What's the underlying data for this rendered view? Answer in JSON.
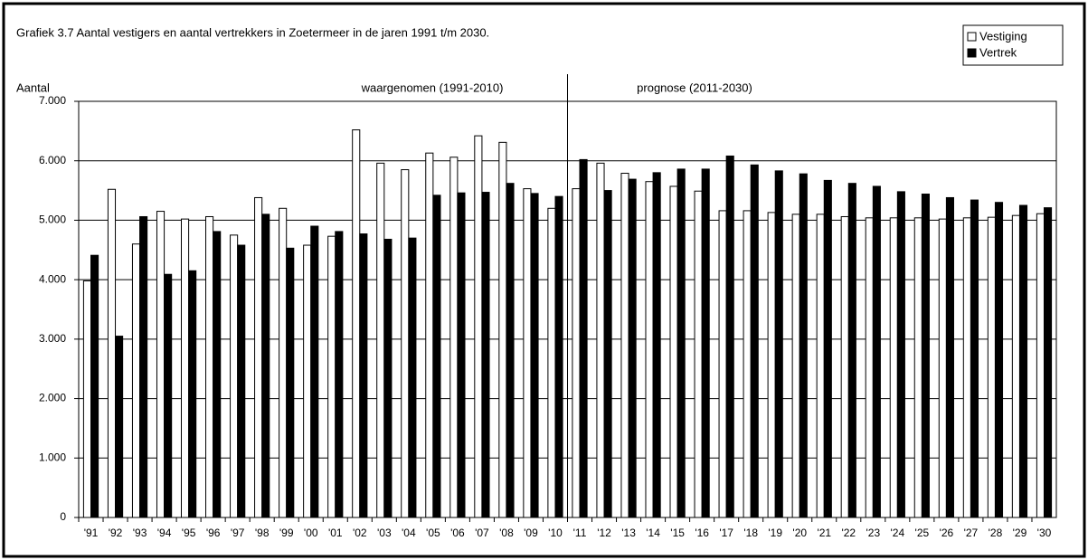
{
  "chart_data": {
    "type": "bar",
    "title": "Grafiek 3.7  Aantal vestigers en aantal vertrekkers in Zoetermeer in de jaren 1991 t/m 2030.",
    "y_label": "Aantal",
    "annotations": [
      "waargenomen (1991-2010)",
      "prognose (2011-2030)"
    ],
    "categories": [
      "'91",
      "'92",
      "'93",
      "'94",
      "'95",
      "'96",
      "'97",
      "'98",
      "'99",
      "'00",
      "'01",
      "'02",
      "'03",
      "'04",
      "'05",
      "'06",
      "'07",
      "'08",
      "'09",
      "'10",
      "'11",
      "'12",
      "'13",
      "'14",
      "'15",
      "'16",
      "'17",
      "'18",
      "'19",
      "'20",
      "'21",
      "'22",
      "'23",
      "'24",
      "'25",
      "'26",
      "'27",
      "'28",
      "'29",
      "'30"
    ],
    "series": [
      {
        "name": "Vestiging",
        "color": "#ffffff",
        "values": [
          3980,
          5520,
          4600,
          5150,
          5020,
          5060,
          4750,
          5380,
          5200,
          4580,
          4730,
          6520,
          5960,
          5850,
          6130,
          6060,
          6420,
          6310,
          5530,
          5200,
          5530,
          5960,
          5790,
          5650,
          5570,
          5490,
          5160,
          5160,
          5130,
          5100,
          5100,
          5060,
          5040,
          5040,
          5040,
          5020,
          5040,
          5050,
          5080,
          5110
        ]
      },
      {
        "name": "Vertrek",
        "color": "#000000",
        "values": [
          4410,
          3050,
          5060,
          4090,
          4150,
          4810,
          4580,
          5100,
          4530,
          4900,
          4810,
          4770,
          4680,
          4700,
          5420,
          5460,
          5470,
          5620,
          5450,
          5400,
          6020,
          5500,
          5690,
          5800,
          5860,
          5860,
          6080,
          5930,
          5830,
          5780,
          5670,
          5620,
          5570,
          5480,
          5440,
          5380,
          5340,
          5300,
          5250,
          5210
        ]
      }
    ],
    "ylim": [
      0,
      7000
    ],
    "yticks": [
      0,
      {
        "value": 1000,
        "label": "1.000"
      },
      {
        "value": 2000,
        "label": "2.000"
      },
      {
        "value": 3000,
        "label": "3.000"
      },
      {
        "value": 4000,
        "label": "4.000"
      },
      {
        "value": 5000,
        "label": "5.000"
      },
      {
        "value": 6000,
        "label": "6.000"
      },
      {
        "value": 7000,
        "label": "7.000"
      }
    ],
    "grid": true,
    "legend": "top-right"
  }
}
